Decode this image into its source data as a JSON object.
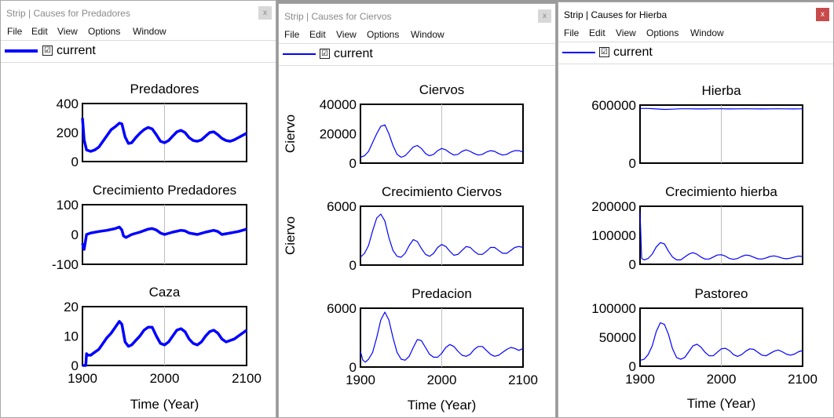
{
  "menu": [
    "File",
    "Edit",
    "View",
    "Options",
    "Window"
  ],
  "close_glyph": "x",
  "checkbox_glyph": "☑",
  "line_color": "#0000ff",
  "x_axis": {
    "ticks": [
      "1900",
      "2000",
      "2100"
    ],
    "label": "Time (Year)",
    "range": [
      1900,
      2100
    ]
  },
  "windows": [
    {
      "title": "Strip | Causes for Predadores",
      "legend_label": "current",
      "plots": [
        {
          "title": "Predadores",
          "ylabel": "",
          "ylim": [
            0,
            400
          ],
          "yticks": [
            "400",
            "200",
            "0"
          ],
          "x": [
            1900,
            1902,
            1905,
            1910,
            1915,
            1920,
            1925,
            1930,
            1935,
            1940,
            1945,
            1948,
            1952,
            1956,
            1960,
            1965,
            1970,
            1975,
            1980,
            1985,
            1990,
            1995,
            2000,
            2005,
            2010,
            2015,
            2020,
            2025,
            2030,
            2035,
            2040,
            2045,
            2050,
            2055,
            2060,
            2065,
            2070,
            2075,
            2080,
            2085,
            2090,
            2095,
            2100
          ],
          "y": [
            300,
            150,
            80,
            70,
            80,
            100,
            140,
            180,
            220,
            240,
            265,
            260,
            170,
            125,
            130,
            165,
            195,
            220,
            235,
            225,
            185,
            140,
            130,
            145,
            175,
            205,
            215,
            200,
            165,
            145,
            140,
            150,
            175,
            200,
            205,
            185,
            160,
            145,
            140,
            150,
            165,
            180,
            195
          ]
        },
        {
          "title": "Crecimiento Predadores",
          "ylabel": "",
          "ylim": [
            -100,
            100
          ],
          "yticks": [
            "100",
            "0",
            "-100"
          ],
          "x": [
            1900,
            1902,
            1905,
            1910,
            1920,
            1930,
            1940,
            1945,
            1948,
            1950,
            1953,
            1960,
            1970,
            1980,
            1985,
            1990,
            1995,
            2000,
            2010,
            2020,
            2025,
            2030,
            2040,
            2050,
            2060,
            2065,
            2070,
            2080,
            2090,
            2100
          ],
          "y": [
            -30,
            -50,
            0,
            5,
            10,
            14,
            20,
            25,
            15,
            -5,
            -10,
            0,
            8,
            18,
            20,
            15,
            5,
            0,
            8,
            14,
            12,
            5,
            0,
            8,
            14,
            10,
            0,
            5,
            10,
            18
          ]
        },
        {
          "title": "Caza",
          "ylabel": "",
          "ylim": [
            0,
            20
          ],
          "yticks": [
            "20",
            "10",
            "0"
          ],
          "x": [
            1900,
            1904,
            1905,
            1906,
            1910,
            1915,
            1920,
            1925,
            1930,
            1935,
            1940,
            1945,
            1948,
            1952,
            1956,
            1960,
            1965,
            1970,
            1975,
            1980,
            1985,
            1990,
            1995,
            2000,
            2005,
            2010,
            2015,
            2020,
            2025,
            2030,
            2035,
            2040,
            2045,
            2050,
            2055,
            2060,
            2065,
            2070,
            2075,
            2080,
            2085,
            2090,
            2095,
            2100
          ],
          "y": [
            0,
            0,
            4,
            3.5,
            3.5,
            4.5,
            5.5,
            7.5,
            9.5,
            11,
            13,
            15,
            14,
            8,
            6.5,
            7,
            8.5,
            10,
            12,
            13,
            13,
            10,
            7.5,
            7,
            8,
            10,
            12,
            12.5,
            11.5,
            9,
            7.5,
            7,
            8,
            10,
            11.5,
            12,
            11,
            9,
            8,
            8.5,
            9,
            10,
            11,
            12
          ]
        }
      ]
    },
    {
      "title": "Strip | Causes for Ciervos",
      "legend_label": "current",
      "plots": [
        {
          "title": "Ciervos",
          "ylabel": "Ciervo",
          "ylim": [
            0,
            40000
          ],
          "yticks": [
            "40000",
            "20000",
            "0"
          ],
          "x": [
            1900,
            1905,
            1910,
            1915,
            1920,
            1925,
            1930,
            1935,
            1940,
            1945,
            1950,
            1955,
            1960,
            1965,
            1970,
            1975,
            1980,
            1985,
            1990,
            1995,
            2000,
            2005,
            2010,
            2015,
            2020,
            2025,
            2030,
            2035,
            2040,
            2045,
            2050,
            2055,
            2060,
            2065,
            2070,
            2075,
            2080,
            2085,
            2090,
            2095,
            2100
          ],
          "y": [
            4000,
            5000,
            8000,
            14000,
            20000,
            25000,
            26000,
            20000,
            12000,
            6000,
            4000,
            5000,
            8000,
            11000,
            12000,
            10000,
            6500,
            5000,
            6000,
            8500,
            10000,
            9000,
            7000,
            5500,
            6000,
            8000,
            9000,
            8000,
            6500,
            5500,
            6000,
            7500,
            8500,
            8000,
            6500,
            5500,
            6000,
            7500,
            8500,
            8500,
            7500
          ]
        },
        {
          "title": "Crecimiento Ciervos",
          "ylabel": "Ciervo",
          "ylim": [
            0,
            6000
          ],
          "yticks": [
            "6000",
            "0"
          ],
          "x": [
            1900,
            1905,
            1910,
            1915,
            1920,
            1925,
            1930,
            1935,
            1940,
            1945,
            1950,
            1955,
            1960,
            1965,
            1970,
            1975,
            1980,
            1985,
            1990,
            1995,
            2000,
            2005,
            2010,
            2015,
            2020,
            2025,
            2030,
            2035,
            2040,
            2045,
            2050,
            2055,
            2060,
            2065,
            2070,
            2075,
            2080,
            2085,
            2090,
            2095,
            2100
          ],
          "y": [
            800,
            1200,
            2000,
            3500,
            4800,
            5200,
            4500,
            2800,
            1500,
            900,
            800,
            1200,
            2000,
            2600,
            2400,
            1700,
            1100,
            900,
            1200,
            1800,
            2100,
            1900,
            1400,
            1000,
            1100,
            1500,
            1900,
            1800,
            1400,
            1100,
            1100,
            1400,
            1800,
            1800,
            1500,
            1200,
            1200,
            1500,
            1800,
            1900,
            1800
          ]
        },
        {
          "title": "Predacion",
          "ylabel": "",
          "ylim": [
            0,
            6000
          ],
          "yticks": [
            "6000",
            "0"
          ],
          "x": [
            1900,
            1903,
            1906,
            1910,
            1915,
            1920,
            1925,
            1930,
            1935,
            1940,
            1945,
            1950,
            1955,
            1960,
            1965,
            1970,
            1975,
            1980,
            1985,
            1990,
            1995,
            2000,
            2005,
            2010,
            2015,
            2020,
            2025,
            2030,
            2035,
            2040,
            2045,
            2050,
            2055,
            2060,
            2065,
            2070,
            2075,
            2080,
            2085,
            2090,
            2095,
            2100
          ],
          "y": [
            1600,
            700,
            500,
            800,
            1500,
            3000,
            4800,
            5600,
            4800,
            3000,
            1500,
            800,
            700,
            1100,
            2000,
            2800,
            2700,
            2000,
            1300,
            1000,
            1000,
            1400,
            2000,
            2300,
            2100,
            1600,
            1200,
            1100,
            1300,
            1800,
            2100,
            2100,
            1700,
            1300,
            1100,
            1200,
            1500,
            1800,
            2000,
            1900,
            1700,
            1900
          ]
        }
      ]
    },
    {
      "title": "Strip | Causes for Hierba",
      "legend_label": "current",
      "plots": [
        {
          "title": "Hierba",
          "ylabel": "",
          "ylim": [
            0,
            600000
          ],
          "yticks": [
            "600000",
            "0"
          ],
          "x": [
            1900,
            1910,
            1920,
            1930,
            1940,
            1950,
            1960,
            1970,
            1980,
            1990,
            2000,
            2010,
            2020,
            2030,
            2040,
            2050,
            2060,
            2070,
            2080,
            2090,
            2100
          ],
          "y": [
            565000,
            565000,
            560000,
            555000,
            558000,
            562000,
            562000,
            560000,
            560000,
            562000,
            562000,
            560000,
            561000,
            562000,
            561000,
            560000,
            561000,
            562000,
            561000,
            560000,
            562000
          ]
        },
        {
          "title": "Crecimiento hierba",
          "ylabel": "",
          "ylim": [
            0,
            200000
          ],
          "yticks": [
            "200000",
            "100000",
            "0"
          ],
          "x": [
            1900,
            1902,
            1905,
            1910,
            1915,
            1920,
            1925,
            1930,
            1935,
            1940,
            1945,
            1950,
            1955,
            1960,
            1965,
            1970,
            1975,
            1980,
            1985,
            1990,
            1995,
            2000,
            2005,
            2010,
            2015,
            2020,
            2025,
            2030,
            2035,
            2040,
            2045,
            2050,
            2055,
            2060,
            2065,
            2070,
            2075,
            2080,
            2085,
            2090,
            2095,
            2100
          ],
          "y": [
            180000,
            20000,
            15000,
            20000,
            35000,
            60000,
            75000,
            70000,
            45000,
            25000,
            15000,
            15000,
            25000,
            35000,
            40000,
            35000,
            25000,
            18000,
            18000,
            25000,
            32000,
            33000,
            28000,
            20000,
            17000,
            20000,
            27000,
            32000,
            30000,
            24000,
            19000,
            18000,
            22000,
            27000,
            29000,
            26000,
            21000,
            19000,
            21000,
            25000,
            28000,
            27000
          ]
        },
        {
          "title": "Pastoreo",
          "ylabel": "",
          "ylim": [
            0,
            100000
          ],
          "yticks": [
            "100000",
            "50000",
            "0"
          ],
          "x": [
            1900,
            1905,
            1910,
            1915,
            1920,
            1925,
            1930,
            1935,
            1940,
            1945,
            1950,
            1955,
            1960,
            1965,
            1970,
            1975,
            1980,
            1985,
            1990,
            1995,
            2000,
            2005,
            2010,
            2015,
            2020,
            2025,
            2030,
            2035,
            2040,
            2045,
            2050,
            2055,
            2060,
            2065,
            2070,
            2075,
            2080,
            2085,
            2090,
            2095,
            2100
          ],
          "y": [
            10000,
            12000,
            20000,
            35000,
            60000,
            75000,
            72000,
            55000,
            30000,
            15000,
            12000,
            15000,
            25000,
            35000,
            38000,
            33000,
            24000,
            18000,
            18000,
            24000,
            30000,
            31000,
            27000,
            20000,
            17000,
            20000,
            26000,
            30000,
            29000,
            24000,
            19000,
            18000,
            22000,
            26000,
            28000,
            25000,
            21000,
            19000,
            21000,
            25000,
            27000
          ]
        }
      ]
    }
  ]
}
